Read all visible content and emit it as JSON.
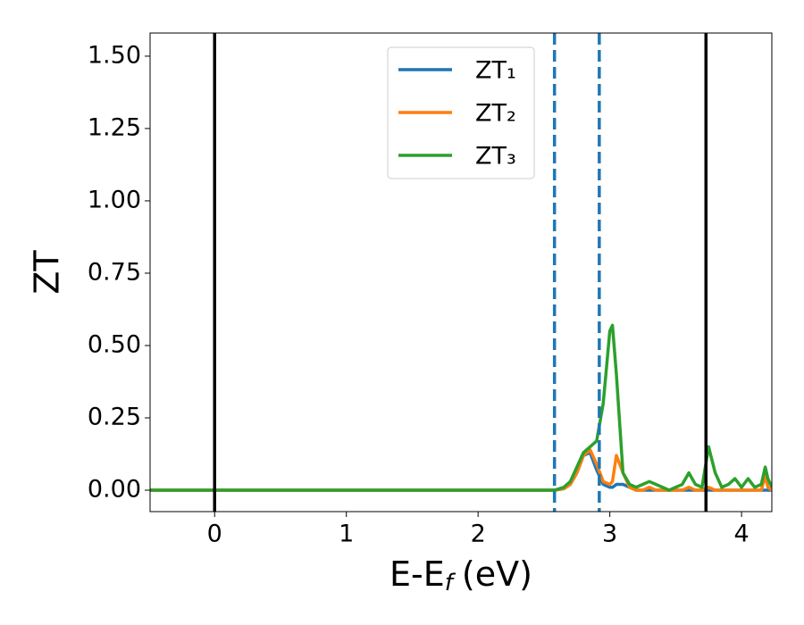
{
  "chart_data": {
    "type": "line",
    "ylabel": "ZT",
    "xlabel": {
      "base": "E-E",
      "sub": "f",
      "rest": "(eV)"
    },
    "x": [
      -0.49,
      2.58,
      2.65,
      2.7,
      2.75,
      2.8,
      2.85,
      2.9,
      2.95,
      3.0,
      3.02,
      3.05,
      3.1,
      3.15,
      3.2,
      3.25,
      3.3,
      3.35,
      3.4,
      3.45,
      3.5,
      3.55,
      3.6,
      3.65,
      3.7,
      3.75,
      3.8,
      3.85,
      3.9,
      3.95,
      4.0,
      4.05,
      4.1,
      4.15,
      4.18,
      4.2,
      4.23
    ],
    "series": [
      {
        "name": "ZT₁",
        "color": "#1f77b4",
        "values": [
          0,
          0,
          0.005,
          0.02,
          0.06,
          0.12,
          0.13,
          0.07,
          0.02,
          0.01,
          0.01,
          0.02,
          0.02,
          0.01,
          0,
          0,
          0,
          0,
          0,
          0,
          0,
          0,
          0,
          0,
          0,
          0,
          0,
          0,
          0,
          0,
          0,
          0,
          0,
          0,
          0,
          0,
          0
        ]
      },
      {
        "name": "ZT₂",
        "color": "#ff7f0e",
        "values": [
          0,
          0,
          0.005,
          0.02,
          0.06,
          0.12,
          0.14,
          0.09,
          0.03,
          0.02,
          0.03,
          0.12,
          0.06,
          0.01,
          0,
          0,
          0.01,
          0,
          0,
          0,
          0,
          0,
          0.01,
          0,
          0,
          0.01,
          0,
          0,
          0,
          0,
          0,
          0,
          0,
          0,
          0.05,
          0.01,
          0
        ]
      },
      {
        "name": "ZT₃",
        "color": "#2ca02c",
        "values": [
          0,
          0,
          0.01,
          0.03,
          0.08,
          0.13,
          0.15,
          0.17,
          0.3,
          0.55,
          0.57,
          0.4,
          0.06,
          0.02,
          0.01,
          0.02,
          0.03,
          0.02,
          0.01,
          0,
          0.01,
          0.02,
          0.06,
          0.02,
          0.01,
          0.15,
          0.06,
          0.01,
          0.02,
          0.04,
          0.01,
          0.04,
          0.01,
          0.02,
          0.08,
          0.04,
          0.01
        ]
      }
    ],
    "vlines": [
      {
        "x": 0,
        "color": "#000000",
        "style": "solid"
      },
      {
        "x": 2.58,
        "color": "#1f77b4",
        "style": "dashed"
      },
      {
        "x": 2.92,
        "color": "#1f77b4",
        "style": "dashed"
      },
      {
        "x": 3.73,
        "color": "#000000",
        "style": "solid"
      }
    ],
    "xlim": [
      -0.49,
      4.23
    ],
    "ylim": [
      -0.074,
      1.58
    ],
    "xticks": [
      0,
      1,
      2,
      3,
      4
    ],
    "yticks": [
      {
        "value": 0,
        "label": "0.00"
      },
      {
        "value": 0.25,
        "label": "0.25"
      },
      {
        "value": 0.5,
        "label": "0.50"
      },
      {
        "value": 0.75,
        "label": "0.75"
      },
      {
        "value": 1,
        "label": "1.00"
      },
      {
        "value": 1.25,
        "label": "1.25"
      },
      {
        "value": 1.5,
        "label": "1.50"
      }
    ],
    "legend": "upper center"
  }
}
